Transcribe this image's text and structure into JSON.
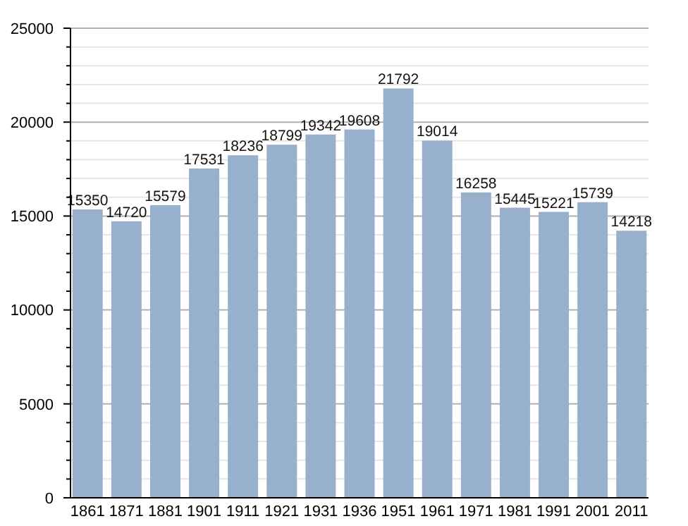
{
  "chart_data": {
    "type": "bar",
    "categories": [
      "1861",
      "1871",
      "1881",
      "1901",
      "1911",
      "1921",
      "1931",
      "1936",
      "1951",
      "1961",
      "1971",
      "1981",
      "1991",
      "2001",
      "2011"
    ],
    "values": [
      15350,
      14720,
      15579,
      17531,
      18236,
      18799,
      19342,
      19608,
      21792,
      19014,
      16258,
      15445,
      15221,
      15739,
      14218
    ],
    "color": "#97b0cb",
    "ylim": [
      0,
      25000
    ],
    "yticks": [
      0,
      {
        "value": 1000,
        "label": null
      },
      {
        "value": 2000,
        "label": null
      },
      {
        "value": 3000,
        "label": null
      },
      {
        "value": 4000,
        "label": null
      },
      5000,
      {
        "value": 6000,
        "label": null
      },
      {
        "value": 7000,
        "label": null
      },
      {
        "value": 8000,
        "label": null
      },
      {
        "value": 9000,
        "label": null
      },
      10000,
      {
        "value": 11000,
        "label": null
      },
      {
        "value": 12000,
        "label": null
      },
      {
        "value": 13000,
        "label": null
      },
      {
        "value": 14000,
        "label": null
      },
      15000,
      {
        "value": 16000,
        "label": null
      },
      {
        "value": 17000,
        "label": null
      },
      {
        "value": 18000,
        "label": null
      },
      {
        "value": 19000,
        "label": null
      },
      20000,
      {
        "value": 21000,
        "label": null
      },
      {
        "value": 22000,
        "label": null
      },
      {
        "value": 23000,
        "label": null
      },
      {
        "value": 24000,
        "label": null
      },
      25000
    ],
    "grid": true,
    "data_labels": true
  }
}
